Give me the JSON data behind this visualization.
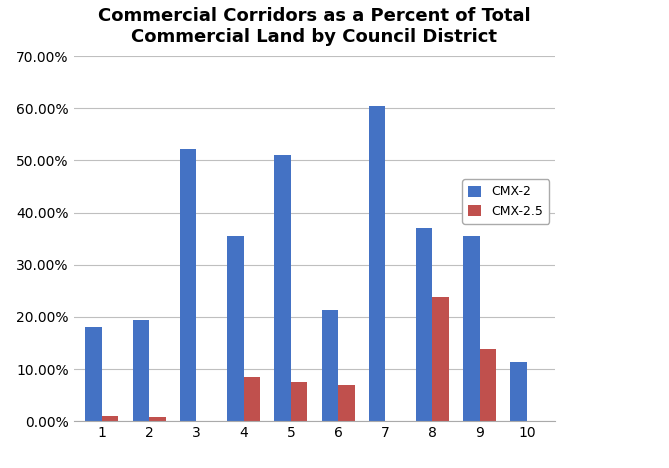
{
  "title": "Commercial Corridors as a Percent of Total\nCommercial Land by Council District",
  "categories": [
    1,
    2,
    3,
    4,
    5,
    6,
    7,
    8,
    9,
    10
  ],
  "cmx2_values": [
    0.18,
    0.195,
    0.522,
    0.355,
    0.51,
    0.213,
    0.605,
    0.37,
    0.356,
    0.114
  ],
  "cmx25_values": [
    0.01,
    0.009,
    0.0,
    0.085,
    0.075,
    0.069,
    0.0,
    0.238,
    0.138,
    0.0
  ],
  "cmx2_color": "#4472C4",
  "cmx25_color": "#C0504D",
  "ylim": [
    0.0,
    0.7
  ],
  "yticks": [
    0.0,
    0.1,
    0.2,
    0.3,
    0.4,
    0.5,
    0.6,
    0.7
  ],
  "legend_labels": [
    "CMX-2",
    "CMX-2.5"
  ],
  "background_color": "#FFFFFF",
  "grid_color": "#BFBFBF",
  "bar_width": 0.35,
  "title_fontsize": 13
}
